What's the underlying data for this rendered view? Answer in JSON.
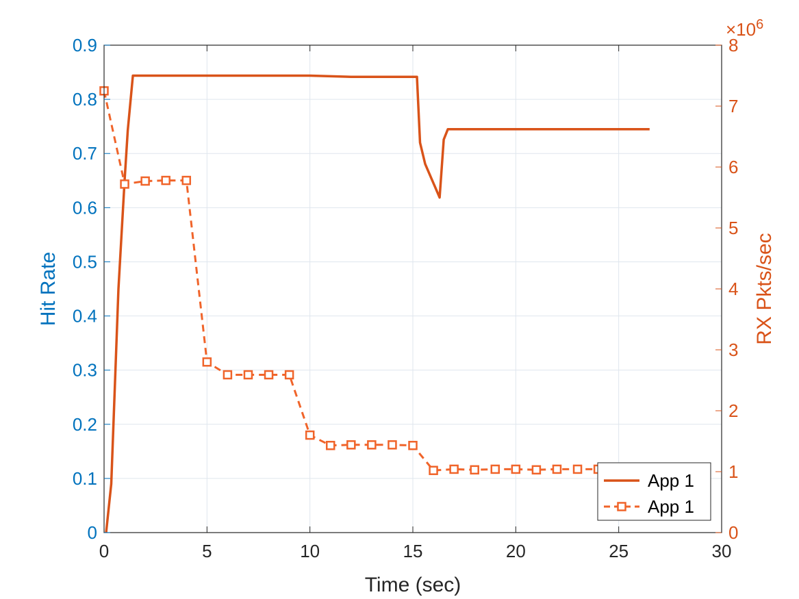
{
  "chart_data": {
    "type": "line",
    "xlabel": "Time (sec)",
    "ylabel_left": "Hit Rate",
    "ylabel_right": "RX Pkts/sec",
    "right_axis_multiplier": "×10",
    "right_axis_exponent": "6",
    "xlim": [
      0,
      30
    ],
    "ylim_left": [
      0,
      0.9
    ],
    "ylim_right": [
      0,
      8000000
    ],
    "xticks": [
      "0",
      "5",
      "10",
      "15",
      "20",
      "25",
      "30"
    ],
    "yticks_left": [
      "0",
      "0.1",
      "0.2",
      "0.3",
      "0.4",
      "0.5",
      "0.6",
      "0.7",
      "0.8",
      "0.9"
    ],
    "yticks_right": [
      "0",
      "1",
      "2",
      "3",
      "4",
      "5",
      "6",
      "7",
      "8"
    ],
    "grid": true,
    "legend_position": "bottom-right",
    "colors": {
      "left_axis": "#0072BD",
      "right_axis": "#D95319",
      "series_solid": "#D95319",
      "series_dashed": "#F0642A"
    },
    "series": [
      {
        "name": "App 1",
        "axis": "right",
        "style": "solid",
        "x": [
          0.1,
          0.35,
          0.7,
          1.0,
          1.15,
          1.4,
          2,
          5,
          10,
          12,
          15.2,
          15.35,
          15.6,
          16.3,
          16.5,
          16.7,
          17,
          20,
          26.5
        ],
        "y": [
          0,
          800000,
          4000000,
          5800000,
          6600000,
          7500000,
          7500000,
          7500000,
          7500000,
          7480000,
          7480000,
          6400000,
          6050000,
          5500000,
          6450000,
          6620000,
          6620000,
          6620000,
          6620000
        ]
      },
      {
        "name": "App 1",
        "axis": "right",
        "style": "dashed-square",
        "x": [
          0,
          1,
          2,
          3,
          4,
          5,
          6,
          7,
          8,
          9,
          10,
          11,
          12,
          13,
          14,
          15,
          16,
          17,
          18,
          19,
          20,
          21,
          22,
          23,
          24
        ],
        "y": [
          7250000,
          5720000,
          5770000,
          5780000,
          5780000,
          2800000,
          2590000,
          2590000,
          2590000,
          2590000,
          1600000,
          1430000,
          1440000,
          1440000,
          1440000,
          1430000,
          1020000,
          1040000,
          1030000,
          1040000,
          1040000,
          1030000,
          1040000,
          1040000,
          1040000
        ]
      }
    ],
    "legend": [
      "App 1",
      "App 1"
    ]
  }
}
